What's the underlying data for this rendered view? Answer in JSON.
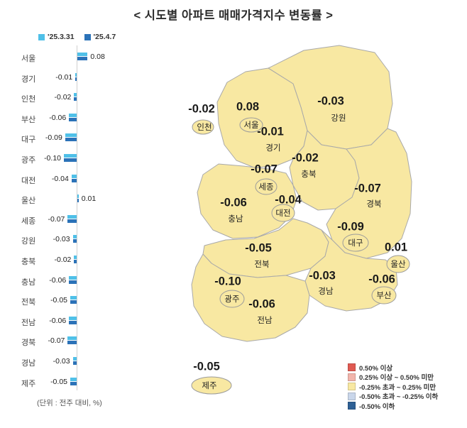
{
  "title": "<  시도별  아파트  매매가격지수  변동률  >",
  "footnote": "(단위 : 전주 대비, %)",
  "bar_legend": [
    {
      "label": "'25.3.31",
      "color": "#4fc0e8"
    },
    {
      "label": "'25.4.7",
      "color": "#2b72b8"
    }
  ],
  "map_legend": [
    {
      "label": "0.50% 이상",
      "color": "#e05a52"
    },
    {
      "label": "0.25% 이상 ~ 0.50% 미만",
      "color": "#f2b5ac"
    },
    {
      "label": "-0.25% 초과 ~ 0.25% 미만",
      "color": "#f8e8a2"
    },
    {
      "label": "-0.50% 초과 ~ -0.25% 이하",
      "color": "#c9d6ea"
    },
    {
      "label": "-0.50% 이하",
      "color": "#2e6095"
    }
  ],
  "regions": [
    {
      "id": "seoul",
      "name": "서울",
      "label": "0.08"
    },
    {
      "id": "gyeonggi",
      "name": "경기",
      "label": "-0.01"
    },
    {
      "id": "incheon",
      "name": "인천",
      "label": "-0.02"
    },
    {
      "id": "busan",
      "name": "부산",
      "label": "-0.06"
    },
    {
      "id": "daegu",
      "name": "대구",
      "label": "-0.09"
    },
    {
      "id": "gwangju",
      "name": "광주",
      "label": "-0.10"
    },
    {
      "id": "daejeon",
      "name": "대전",
      "label": "-0.04"
    },
    {
      "id": "ulsan",
      "name": "울산",
      "label": "0.01"
    },
    {
      "id": "sejong",
      "name": "세종",
      "label": "-0.07"
    },
    {
      "id": "gangwon",
      "name": "강원",
      "label": "-0.03"
    },
    {
      "id": "chungbuk",
      "name": "충북",
      "label": "-0.02"
    },
    {
      "id": "chungnam",
      "name": "충남",
      "label": "-0.06"
    },
    {
      "id": "jeonbuk",
      "name": "전북",
      "label": "-0.05"
    },
    {
      "id": "jeonnam",
      "name": "전남",
      "label": "-0.06"
    },
    {
      "id": "gyeongbuk",
      "name": "경북",
      "label": "-0.07"
    },
    {
      "id": "gyeongnam",
      "name": "경남",
      "label": "-0.03"
    },
    {
      "id": "jeju",
      "name": "제주",
      "label": "-0.05"
    }
  ],
  "chart_data": {
    "type": "bar",
    "orientation": "horizontal",
    "title": "시도별 아파트 매매가격지수 변동률",
    "unit": "전주 대비, %",
    "xlim": [
      -0.12,
      0.12
    ],
    "categories": [
      "서울",
      "경기",
      "인천",
      "부산",
      "대구",
      "광주",
      "대전",
      "울산",
      "세종",
      "강원",
      "충북",
      "충남",
      "전북",
      "전남",
      "경북",
      "경남",
      "제주"
    ],
    "series": [
      {
        "name": "'25.3.31",
        "estimated": true,
        "values": [
          0.08,
          -0.01,
          -0.02,
          -0.06,
          -0.09,
          -0.1,
          -0.04,
          0.01,
          -0.07,
          -0.03,
          -0.02,
          -0.06,
          -0.05,
          -0.06,
          -0.07,
          -0.03,
          -0.05
        ]
      },
      {
        "name": "'25.4.7",
        "values": [
          0.08,
          -0.01,
          -0.02,
          -0.06,
          -0.09,
          -0.1,
          -0.04,
          0.01,
          -0.07,
          -0.03,
          -0.02,
          -0.06,
          -0.05,
          -0.06,
          -0.07,
          -0.03,
          -0.05
        ]
      }
    ]
  }
}
